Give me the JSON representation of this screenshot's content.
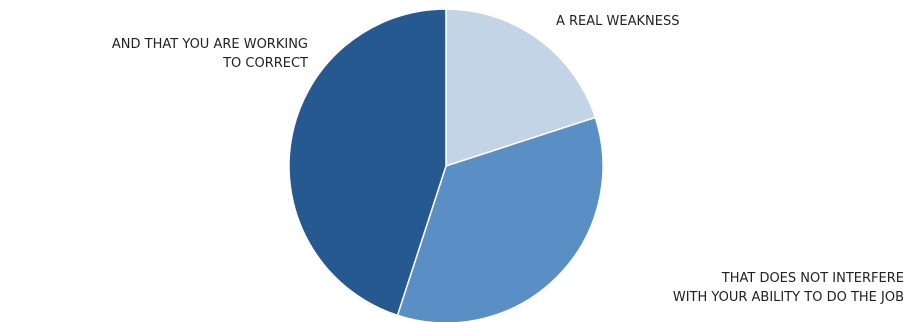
{
  "chart_data": {
    "type": "pie",
    "title": "",
    "start_angle_deg": 0,
    "direction": "clockwise",
    "slices": [
      {
        "label_lines": [
          "A REAL WEAKNESS"
        ],
        "value": 0.2,
        "color": "#c3d4e7"
      },
      {
        "label_lines": [
          "THAT DOES NOT INTERFERE",
          "WITH YOUR ABILITY TO DO THE JOB"
        ],
        "value": 0.35,
        "color": "#5a8fc5"
      },
      {
        "label_lines": [
          "AND THAT YOU ARE WORKING",
          "TO CORRECT"
        ],
        "value": 0.45,
        "color": "#265990"
      }
    ]
  }
}
